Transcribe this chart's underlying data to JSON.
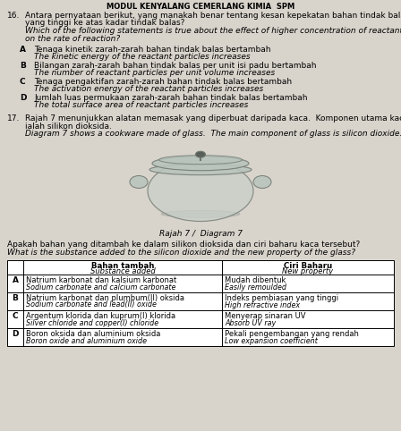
{
  "background_color": "#d8d4cc",
  "q16_options": [
    {
      "label": "A",
      "malay": "Tenaga kinetik zarah-zarah bahan tindak balas bertambah",
      "english": "The kinetic energy of the reactant particles increases"
    },
    {
      "label": "B",
      "malay": "Bilangan zarah-zarah bahan tindak balas per unit isi padu bertambah",
      "english": "The number of reactant particles per unit volume increases"
    },
    {
      "label": "C",
      "malay": "Tenaga pengaktifan zarah-zarah bahan tindak balas bertambah",
      "english": "The activation energy of the reactant particles increases"
    },
    {
      "label": "D",
      "malay": "Jumlah luas permukaan zarah-zarah bahan tindak balas bertambah",
      "english": "The total surface area of reactant particles increases"
    }
  ],
  "diagram_label": "Rajah 7 /  Diagram 7",
  "q17_question_malay": "Apakah bahan yang ditambah ke dalam silikon dioksida dan ciri baharu kaca tersebut?",
  "q17_question_english": "What is the substance added to the silicon dioxide and the new property of the glass?",
  "table_rows": [
    {
      "label": "A",
      "col1_malay": "Natrium karbonat dan kalsium karbonat",
      "col1_english": "Sodium carbonate and calcium carbonate",
      "col2_malay": "Mudah dibentuk",
      "col2_english": "Easily remoulded"
    },
    {
      "label": "B",
      "col1_malay": "Natrium karbonat dan plumbum(II) oksida",
      "col1_english": "Sodium carbonate and lead(II) oxide",
      "col2_malay": "Indeks pembiasan yang tinggi",
      "col2_english": "High refractive index"
    },
    {
      "label": "C",
      "col1_malay": "Argentum klorida dan kuprum(I) klorida",
      "col1_english": "Silver chloride and copper(I) chloride",
      "col2_malay": "Menyerap sinaran UV",
      "col2_english": "Absorb UV ray"
    },
    {
      "label": "D",
      "col1_malay": "Boron oksida dan aluminium oksida",
      "col1_english": "Boron oxide and aluminium oxide",
      "col2_malay": "Pekali pengembangan yang rendah",
      "col2_english": "Low expansion coefficient"
    }
  ],
  "pot_body_color": "#c8cfc8",
  "pot_edge_color": "#707870",
  "pot_lid_color": "#b8c4bc",
  "pot_knob_color": "#585e58"
}
